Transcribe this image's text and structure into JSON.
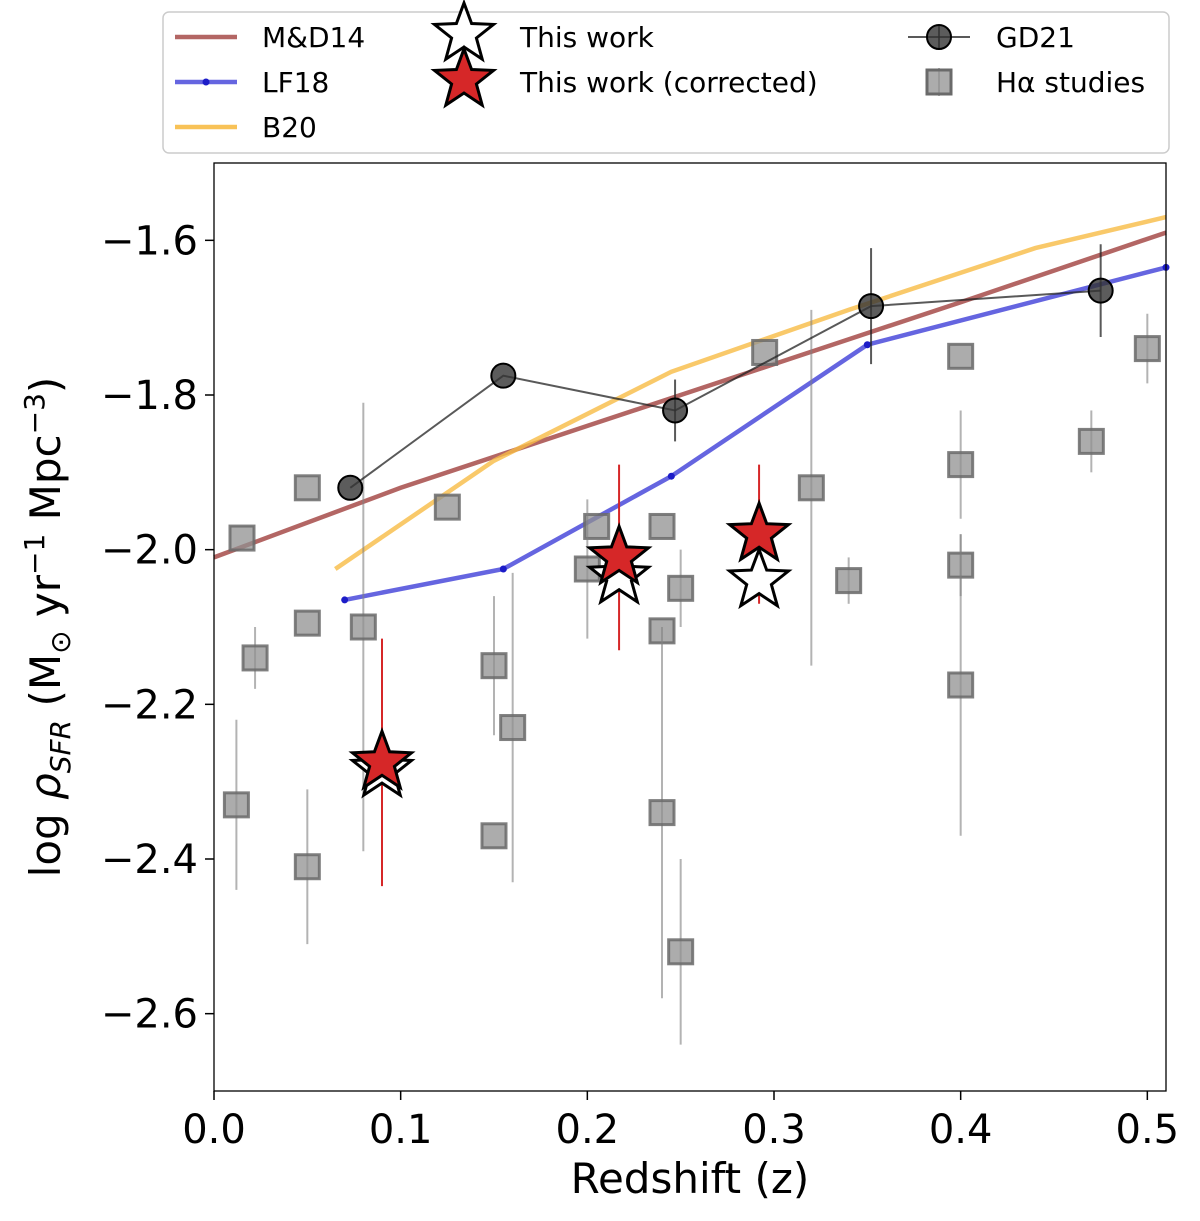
{
  "chart_data": {
    "type": "scatter",
    "xlabel": "Redshift (z)",
    "ylabel": "log ρSFR (M⊙ yr−1 Mpc−3)",
    "ylabel_parts": {
      "prefix": "log ",
      "rho": "ρ",
      "rho_sub": "SFR",
      "mid": " (M",
      "sun": "⊙",
      "yr": " yr",
      "yr_sup": "−1",
      "mpc": " Mpc",
      "mpc_sup": "−3",
      "close": ")"
    },
    "xlim": [
      0.0,
      0.51
    ],
    "ylim": [
      -2.7,
      -1.5
    ],
    "xticks": [
      0.0,
      0.1,
      0.2,
      0.3,
      0.4,
      0.5
    ],
    "xtick_labels": [
      "0.0",
      "0.1",
      "0.2",
      "0.3",
      "0.4",
      "0.5"
    ],
    "yticks": [
      -2.6,
      -2.4,
      -2.2,
      -2.0,
      -1.8,
      -1.6
    ],
    "ytick_labels": [
      "−2.6",
      "−2.4",
      "−2.2",
      "−2.0",
      "−1.8",
      "−1.6"
    ],
    "legend": {
      "placement": "top (outside, above axes)",
      "entries": [
        {
          "key": "md14",
          "label": "M&D14"
        },
        {
          "key": "lf18",
          "label": "LF18"
        },
        {
          "key": "b20",
          "label": "B20"
        },
        {
          "key": "this_work",
          "label": "This work"
        },
        {
          "key": "this_work_corr",
          "label": "This work (corrected)"
        },
        {
          "key": "gd21",
          "label": "GD21"
        },
        {
          "key": "halpha",
          "label": "Hα studies"
        }
      ]
    },
    "series": [
      {
        "name": "M&D14",
        "key": "md14",
        "kind": "line",
        "color": "#a0403d",
        "points": [
          [
            0.0,
            -2.01
          ],
          [
            0.1,
            -1.92
          ],
          [
            0.2,
            -1.84
          ],
          [
            0.3,
            -1.76
          ],
          [
            0.4,
            -1.68
          ],
          [
            0.51,
            -1.59
          ]
        ]
      },
      {
        "name": "LF18",
        "key": "lf18",
        "kind": "line-markers",
        "color": "#3232d6",
        "points": [
          [
            0.07,
            -2.065
          ],
          [
            0.155,
            -2.025
          ],
          [
            0.245,
            -1.905
          ],
          [
            0.35,
            -1.735
          ],
          [
            0.51,
            -1.635
          ]
        ]
      },
      {
        "name": "B20",
        "key": "b20",
        "kind": "line",
        "color": "#f7bb45",
        "points": [
          [
            0.065,
            -2.025
          ],
          [
            0.15,
            -1.885
          ],
          [
            0.245,
            -1.77
          ],
          [
            0.34,
            -1.69
          ],
          [
            0.44,
            -1.61
          ],
          [
            0.51,
            -1.57
          ]
        ]
      },
      {
        "name": "GD21",
        "key": "gd21",
        "kind": "errorbar-line",
        "color": "#222222",
        "points": [
          {
            "x": 0.073,
            "y": -1.92,
            "err": 0.0
          },
          {
            "x": 0.155,
            "y": -1.775,
            "err": 0.0
          },
          {
            "x": 0.247,
            "y": -1.82,
            "err": 0.04
          },
          {
            "x": 0.352,
            "y": -1.685,
            "err": 0.075
          },
          {
            "x": 0.475,
            "y": -1.665,
            "err": 0.06
          }
        ]
      },
      {
        "name": "Hα studies",
        "key": "halpha",
        "kind": "errorbar-square",
        "color": "#808080",
        "points": [
          {
            "x": 0.015,
            "y": -1.985,
            "lo": 0.0,
            "hi": 0.0
          },
          {
            "x": 0.012,
            "y": -2.33,
            "lo": 0.11,
            "hi": 0.11
          },
          {
            "x": 0.022,
            "y": -2.14,
            "lo": 0.04,
            "hi": 0.04
          },
          {
            "x": 0.05,
            "y": -1.92,
            "lo": 0.0,
            "hi": 0.0
          },
          {
            "x": 0.05,
            "y": -2.095,
            "lo": 0.0,
            "hi": 0.0
          },
          {
            "x": 0.05,
            "y": -2.41,
            "lo": 0.1,
            "hi": 0.1
          },
          {
            "x": 0.08,
            "y": -2.1,
            "lo": 0.29,
            "hi": 0.29
          },
          {
            "x": 0.125,
            "y": -1.945,
            "lo": 0.0,
            "hi": 0.0
          },
          {
            "x": 0.15,
            "y": -2.15,
            "lo": 0.09,
            "hi": 0.09
          },
          {
            "x": 0.15,
            "y": -2.37,
            "lo": 0.0,
            "hi": 0.0
          },
          {
            "x": 0.16,
            "y": -2.23,
            "lo": 0.2,
            "hi": 0.2
          },
          {
            "x": 0.205,
            "y": -1.97,
            "lo": 0.0,
            "hi": 0.0
          },
          {
            "x": 0.2,
            "y": -2.025,
            "lo": 0.09,
            "hi": 0.09
          },
          {
            "x": 0.24,
            "y": -1.97,
            "lo": 0.0,
            "hi": 0.0
          },
          {
            "x": 0.24,
            "y": -2.105,
            "lo": 0.0,
            "hi": 0.0
          },
          {
            "x": 0.24,
            "y": -2.34,
            "lo": 0.24,
            "hi": 0.24
          },
          {
            "x": 0.25,
            "y": -2.05,
            "lo": 0.05,
            "hi": 0.05
          },
          {
            "x": 0.25,
            "y": -2.52,
            "lo": 0.12,
            "hi": 0.12
          },
          {
            "x": 0.295,
            "y": -1.745,
            "lo": 0.0,
            "hi": 0.0
          },
          {
            "x": 0.32,
            "y": -1.92,
            "lo": 0.23,
            "hi": 0.23
          },
          {
            "x": 0.34,
            "y": -2.04,
            "lo": 0.03,
            "hi": 0.03
          },
          {
            "x": 0.4,
            "y": -1.75,
            "lo": 0.0,
            "hi": 0.0
          },
          {
            "x": 0.4,
            "y": -1.89,
            "lo": 0.07,
            "hi": 0.07
          },
          {
            "x": 0.4,
            "y": -2.02,
            "lo": 0.04,
            "hi": 0.04
          },
          {
            "x": 0.4,
            "y": -2.175,
            "lo": 0.195,
            "hi": 0.195
          },
          {
            "x": 0.47,
            "y": -1.86,
            "lo": 0.04,
            "hi": 0.04
          },
          {
            "x": 0.5,
            "y": -1.74,
            "lo": 0.045,
            "hi": 0.045
          }
        ]
      },
      {
        "name": "This work",
        "key": "this_work",
        "kind": "star-open",
        "color": "#ffffff",
        "points": [
          {
            "x": 0.09,
            "y": -2.285
          },
          {
            "x": 0.217,
            "y": -2.035
          },
          {
            "x": 0.292,
            "y": -2.04
          }
        ]
      },
      {
        "name": "This work (corrected)",
        "key": "this_work_corr",
        "kind": "star-filled",
        "color": "#d62728",
        "points": [
          {
            "x": 0.09,
            "y": -2.275,
            "err": 0.16
          },
          {
            "x": 0.217,
            "y": -2.01,
            "err": 0.12
          },
          {
            "x": 0.292,
            "y": -1.98,
            "err": 0.09
          }
        ]
      }
    ]
  }
}
